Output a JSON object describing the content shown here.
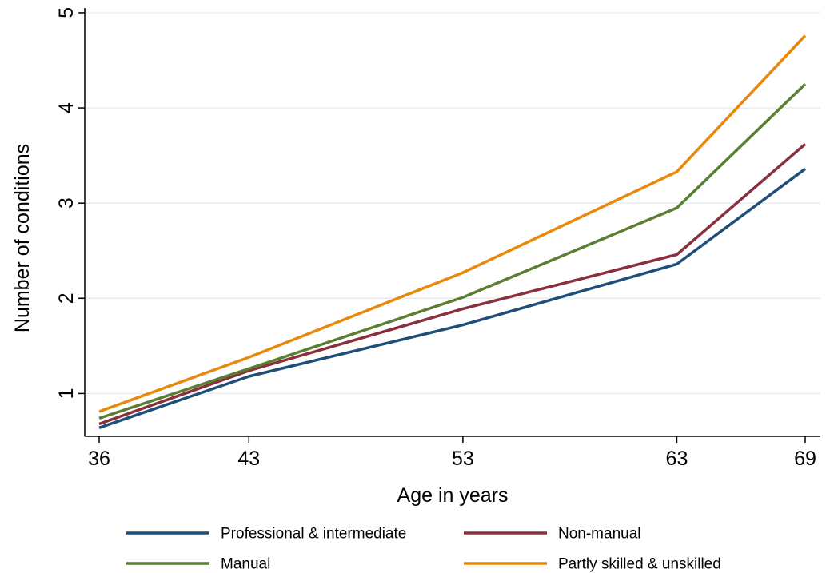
{
  "chart_data": {
    "type": "line",
    "title": "",
    "xlabel": "Age in years",
    "ylabel": "Number of conditions",
    "x": [
      36,
      43,
      53,
      63,
      69
    ],
    "x_tick_labels": [
      "36",
      "43",
      "53",
      "63",
      "69"
    ],
    "y_ticks": [
      1,
      2,
      3,
      4,
      5
    ],
    "y_tick_labels": [
      "1",
      "2",
      "3",
      "4",
      "5"
    ],
    "xlim": [
      36,
      69
    ],
    "ylim": [
      0.55,
      5.05
    ],
    "grid": "horizontal",
    "legend_position": "bottom",
    "series": [
      {
        "name": "Professional & intermediate",
        "color": "#1f4e79",
        "values": [
          0.64,
          1.18,
          1.72,
          2.36,
          3.36
        ]
      },
      {
        "name": "Non-manual",
        "color": "#8b2f3c",
        "values": [
          0.68,
          1.24,
          1.89,
          2.46,
          3.62
        ]
      },
      {
        "name": "Manual",
        "color": "#5a7f32",
        "values": [
          0.74,
          1.26,
          2.01,
          2.95,
          4.25
        ]
      },
      {
        "name": "Partly skilled & unskilled",
        "color": "#e8890c",
        "values": [
          0.81,
          1.38,
          2.27,
          3.33,
          4.76
        ]
      }
    ]
  }
}
